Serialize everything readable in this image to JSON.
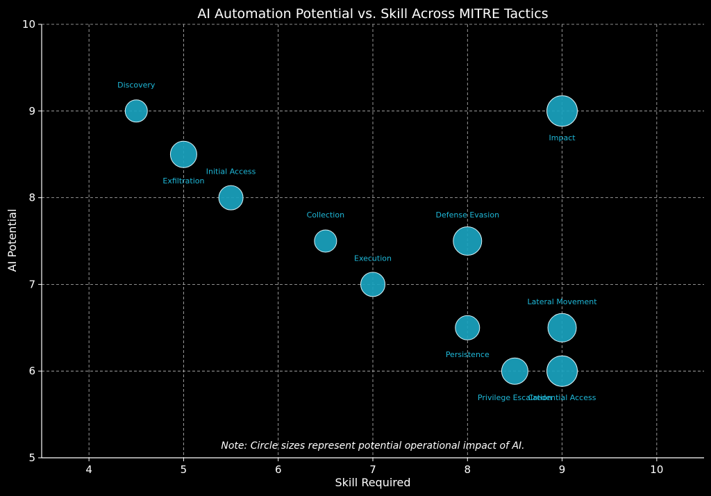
{
  "chart_data": {
    "type": "scatter",
    "title": "AI Automation Potential vs. Skill Across MITRE Tactics",
    "xlabel": "Skill Required",
    "ylabel": "AI Potential",
    "xlim": [
      3.5,
      10.5
    ],
    "ylim": [
      5,
      10
    ],
    "xticks": [
      4,
      5,
      6,
      7,
      8,
      9,
      10
    ],
    "yticks": [
      5,
      6,
      7,
      8,
      9,
      10
    ],
    "grid": true,
    "note": "Note: Circle sizes represent potential operational impact of AI.",
    "colors": {
      "bubble": "#1aa3bf",
      "label": "#1fb8d8",
      "background": "#000000"
    },
    "points": [
      {
        "label": "Discovery",
        "x": 4.5,
        "y": 9,
        "impact": 6,
        "label_pos": "above"
      },
      {
        "label": "Exfiltration",
        "x": 5,
        "y": 8.5,
        "impact": 8,
        "label_pos": "below"
      },
      {
        "label": "Initial Access",
        "x": 5.5,
        "y": 8,
        "impact": 7,
        "label_pos": "above-right"
      },
      {
        "label": "Collection",
        "x": 6.5,
        "y": 7.5,
        "impact": 6,
        "label_pos": "above"
      },
      {
        "label": "Execution",
        "x": 7,
        "y": 7,
        "impact": 7,
        "label_pos": "above"
      },
      {
        "label": "Defense Evasion",
        "x": 8,
        "y": 7.5,
        "impact": 9,
        "label_pos": "above"
      },
      {
        "label": "Persistence",
        "x": 8,
        "y": 6.5,
        "impact": 7,
        "label_pos": "below"
      },
      {
        "label": "Privilege Escalation",
        "x": 8.5,
        "y": 6,
        "impact": 8,
        "label_pos": "below"
      },
      {
        "label": "Impact",
        "x": 9,
        "y": 9,
        "impact": 10,
        "label_pos": "below"
      },
      {
        "label": "Lateral Movement",
        "x": 9,
        "y": 6.5,
        "impact": 9,
        "label_pos": "above"
      },
      {
        "label": "Credential Access",
        "x": 9,
        "y": 6,
        "impact": 10,
        "label_pos": "below"
      }
    ]
  }
}
